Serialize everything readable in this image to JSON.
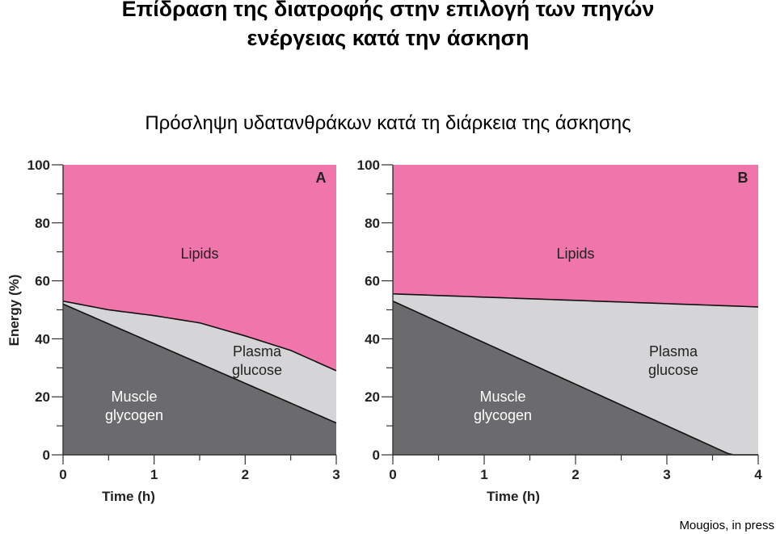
{
  "title_line1": "Επίδραση της διατροφής στην επιλογή των πηγών",
  "title_line2": "ενέργειας κατά την άσκηση",
  "subtitle": "Πρόσληψη υδατανθράκων κατά τη διάρκεια της άσκησης",
  "credit": "Mougios, in press",
  "colors": {
    "lipids": "#f075ab",
    "plasma_glucose": "#d5d5d7",
    "muscle_glycogen": "#6b6b6d",
    "outline": "#111111"
  },
  "chart_data": [
    {
      "type": "area",
      "panel_label": "A",
      "xlabel": "Time (h)",
      "ylabel": "Energy (%)",
      "xlim": [
        0,
        3
      ],
      "ylim": [
        0,
        100
      ],
      "xticks": [
        0,
        1,
        2,
        3
      ],
      "yticks": [
        0,
        20,
        40,
        60,
        80,
        100
      ],
      "stacked": true,
      "series": [
        {
          "name": "Muscle glycogen",
          "x": [
            0,
            3
          ],
          "y": [
            52,
            11
          ]
        },
        {
          "name": "Plasma glucose",
          "x": [
            0,
            0.5,
            1,
            1.5,
            2,
            2.5,
            3
          ],
          "y_top": [
            53,
            50,
            48,
            45.5,
            41,
            36,
            29
          ]
        },
        {
          "name": "Lipids",
          "y_top": [
            100,
            100
          ]
        }
      ]
    },
    {
      "type": "area",
      "panel_label": "B",
      "xlabel": "Time (h)",
      "ylabel": "",
      "xlim": [
        0,
        4
      ],
      "ylim": [
        0,
        100
      ],
      "xticks": [
        0,
        1,
        2,
        3,
        4
      ],
      "yticks": [
        0,
        20,
        40,
        60,
        80,
        100
      ],
      "stacked": true,
      "series": [
        {
          "name": "Muscle glycogen",
          "x": [
            0,
            3.7
          ],
          "y": [
            53,
            0
          ]
        },
        {
          "name": "Plasma glucose",
          "x": [
            0,
            4
          ],
          "y_top": [
            55.5,
            51
          ]
        },
        {
          "name": "Lipids",
          "y_top": [
            100,
            100
          ]
        }
      ]
    }
  ]
}
